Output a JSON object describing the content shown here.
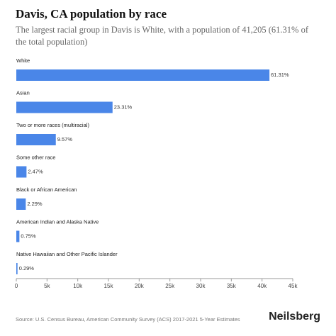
{
  "chart_data": {
    "type": "bar",
    "orientation": "horizontal",
    "title": "Davis, CA population by race",
    "subtitle": "The largest racial group in Davis is White, with a population of 41,205 (61.31% of the total population)",
    "categories": [
      "White",
      "Asian",
      "Two or more races (multiracial)",
      "Some other race",
      "Black or African American",
      "American Indian and Alaska Native",
      "Native Hawaiian and Other Pacific Islander"
    ],
    "values": [
      41205,
      15666,
      6432,
      1660,
      1539,
      504,
      195
    ],
    "value_labels": [
      "61.31%",
      "23.31%",
      "9.57%",
      "2.47%",
      "2.29%",
      "0.75%",
      "0.29%"
    ],
    "color": "#4a86e8",
    "xlim": [
      0,
      45000
    ],
    "xticks": [
      0,
      {
        "value": 5000,
        "label": "5k"
      },
      {
        "value": 10000,
        "label": "10k"
      },
      {
        "value": 15000,
        "label": "15k"
      },
      {
        "value": 20000,
        "label": "20k"
      },
      {
        "value": 25000,
        "label": "25k"
      },
      {
        "value": 30000,
        "label": "30k"
      },
      {
        "value": 35000,
        "label": "35k"
      },
      {
        "value": 40000,
        "label": "40k"
      },
      {
        "value": 45000,
        "label": "45k"
      }
    ],
    "source": "Source: U.S. Census Bureau, American Community Survey (ACS) 2017-2021 5-Year Estimates",
    "brand": "Neilsberg"
  }
}
